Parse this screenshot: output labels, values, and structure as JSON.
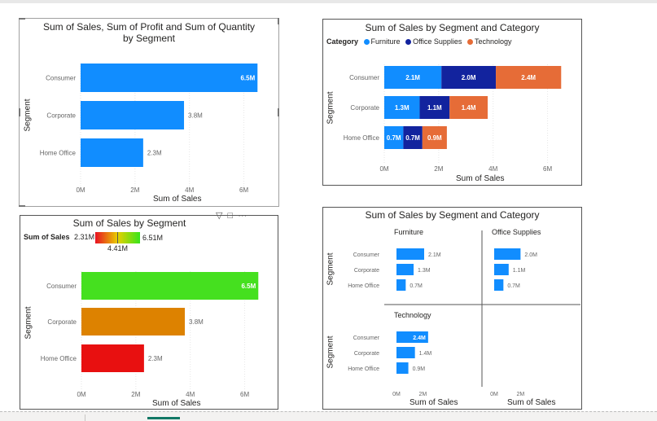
{
  "colors": {
    "bar_blue": "#118DFF",
    "furniture": "#118DFF",
    "office_supplies": "#12239E",
    "technology": "#E66C37",
    "grad_low": "#E81123",
    "grad_high": "#37E51C"
  },
  "chart1": {
    "title": "Sum of Sales, Sum of Profit and Sum of Quantity by Segment",
    "xlabel": "Sum of Sales",
    "ylabel": "Segment",
    "ticks": [
      "0M",
      "2M",
      "4M",
      "6M"
    ]
  },
  "chart2": {
    "title": "Sum of Sales by Segment and Category",
    "legend_title": "Category",
    "legend_items": [
      "Furniture",
      "Office Supplies",
      "Technology"
    ],
    "xlabel": "Sum of Sales",
    "ylabel": "Segment",
    "ticks": [
      "0M",
      "2M",
      "4M",
      "6M"
    ]
  },
  "chart3": {
    "title": "Sum of Sales by Segment",
    "legend_label": "Sum of Sales",
    "legend_min": "2.31M",
    "legend_max": "6.51M",
    "legend_mid": "4.41M",
    "xlabel": "Sum of Sales",
    "ylabel": "Segment",
    "ticks": [
      "0M",
      "2M",
      "4M",
      "6M"
    ],
    "bar_colors": [
      "#45E01F",
      "#DD8200",
      "#E81010"
    ]
  },
  "chart4": {
    "title": "Sum of Sales by Segment and Category",
    "ylabel": "Segment",
    "xlabel": "Sum of Sales",
    "ticks": [
      "0M",
      "2M"
    ],
    "panels": [
      "Furniture",
      "Office Supplies",
      "Technology"
    ]
  },
  "chart_data": [
    {
      "type": "bar",
      "orientation": "horizontal",
      "title": "Sum of Sales, Sum of Profit and Sum of Quantity by Segment",
      "categories": [
        "Consumer",
        "Corporate",
        "Home Office"
      ],
      "values": [
        6.5,
        3.8,
        2.3
      ],
      "labels": [
        "6.5M",
        "3.8M",
        "2.3M"
      ],
      "xlabel": "Sum of Sales",
      "ylabel": "Segment",
      "xlim": [
        0,
        7
      ]
    },
    {
      "type": "bar",
      "orientation": "horizontal",
      "stacked": true,
      "title": "Sum of Sales by Segment and Category",
      "categories": [
        "Consumer",
        "Corporate",
        "Home Office"
      ],
      "series": [
        {
          "name": "Furniture",
          "values": [
            2.1,
            1.3,
            0.7
          ],
          "labels": [
            "2.1M",
            "1.3M",
            "0.7M"
          ]
        },
        {
          "name": "Office Supplies",
          "values": [
            2.0,
            1.1,
            0.7
          ],
          "labels": [
            "2.0M",
            "1.1M",
            "0.7M"
          ]
        },
        {
          "name": "Technology",
          "values": [
            2.4,
            1.4,
            0.9
          ],
          "labels": [
            "2.4M",
            "1.4M",
            "0.9M"
          ]
        }
      ],
      "xlabel": "Sum of Sales",
      "ylabel": "Segment",
      "xlim": [
        0,
        7
      ],
      "legend": "top-left"
    },
    {
      "type": "bar",
      "orientation": "horizontal",
      "title": "Sum of Sales by Segment",
      "categories": [
        "Consumer",
        "Corporate",
        "Home Office"
      ],
      "values": [
        6.5,
        3.8,
        2.3
      ],
      "labels": [
        "6.5M",
        "3.8M",
        "2.3M"
      ],
      "xlabel": "Sum of Sales",
      "ylabel": "Segment",
      "xlim": [
        0,
        7
      ]
    },
    {
      "type": "bar",
      "orientation": "horizontal",
      "small_multiples": true,
      "title": "Sum of Sales by Segment and Category",
      "categories": [
        "Consumer",
        "Corporate",
        "Home Office"
      ],
      "series": [
        {
          "name": "Furniture",
          "values": [
            2.1,
            1.3,
            0.7
          ],
          "labels": [
            "2.1M",
            "1.3M",
            "0.7M"
          ]
        },
        {
          "name": "Office Supplies",
          "values": [
            2.0,
            1.1,
            0.7
          ],
          "labels": [
            "2.0M",
            "1.1M",
            "0.7M"
          ]
        },
        {
          "name": "Technology",
          "values": [
            2.4,
            1.4,
            0.9
          ],
          "labels": [
            "2.4M",
            "1.4M",
            "0.9M"
          ]
        }
      ],
      "xlabel": "Sum of Sales",
      "ylabel": "Segment",
      "xlim": [
        0,
        3
      ]
    }
  ]
}
